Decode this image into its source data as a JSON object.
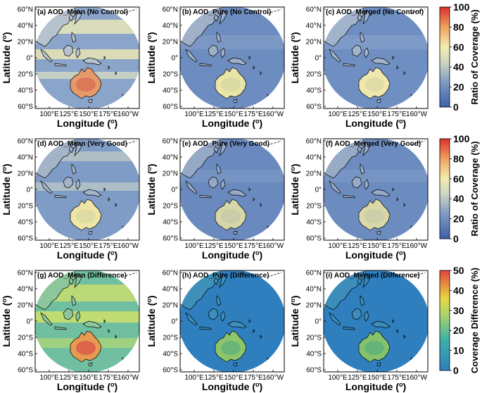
{
  "figure": {
    "rows": [
      {
        "panels": [
          {
            "title": "(a) AOD_Mean (No Control)",
            "scheme": "mean_nc"
          },
          {
            "title": "(b) AOD_Pure (No Control)",
            "scheme": "pure_nc"
          },
          {
            "title": "(c) AOD_Merged (No Control)",
            "scheme": "merged_nc"
          }
        ],
        "ylabel": "Latitude (o)",
        "xlabel": "Longitude (o)",
        "colorbar": {
          "label": "Ratio of Coverage (%)",
          "ticks": [
            "0",
            "20",
            "40",
            "60",
            "80",
            "100"
          ],
          "cmap": "coverage"
        }
      },
      {
        "panels": [
          {
            "title": "(d) AOD_Mean (Very Good)",
            "scheme": "mean_vg"
          },
          {
            "title": "(e) AOD_Pure (Very Good)",
            "scheme": "pure_vg"
          },
          {
            "title": "(f) AOD_Merged (Very Good)",
            "scheme": "merged_vg"
          }
        ],
        "ylabel": "Latitude (o)",
        "xlabel": "Longitude (o)",
        "colorbar": {
          "label": "Ratio of Coverage (%)",
          "ticks": [
            "0",
            "20",
            "40",
            "60",
            "80",
            "100"
          ],
          "cmap": "coverage"
        }
      },
      {
        "panels": [
          {
            "title": "(g) AOD_Mean (Difference)",
            "scheme": "mean_diff"
          },
          {
            "title": "(h) AOD_Pure (Difference)",
            "scheme": "pure_diff"
          },
          {
            "title": "(i) AOD_Merged (Difference)",
            "scheme": "merged_diff"
          }
        ],
        "ylabel": "Latitude (o)",
        "xlabel": "Longitude (o)",
        "colorbar": {
          "label": "Coverage Difference (%)",
          "ticks": [
            "0",
            "10",
            "20",
            "30",
            "40",
            "50"
          ],
          "cmap": "difference"
        }
      }
    ],
    "lat_ticks": [
      "60°N",
      "40°N",
      "20°N",
      "0°",
      "20°S",
      "40°S",
      "60°S"
    ],
    "lon_ticks": [
      "100°E",
      "125°E",
      "150°E",
      "175°E",
      "160°W"
    ],
    "colors": {
      "coverage_low": "#3b5fa8",
      "coverage_mid": "#f3edb0",
      "coverage_high": "#d7312a",
      "difference_low": "#2f7fbf",
      "difference_mid": "#d6df4a",
      "difference_high": "#e0443a",
      "coastline": "#000000",
      "background": "#ffffff"
    }
  }
}
